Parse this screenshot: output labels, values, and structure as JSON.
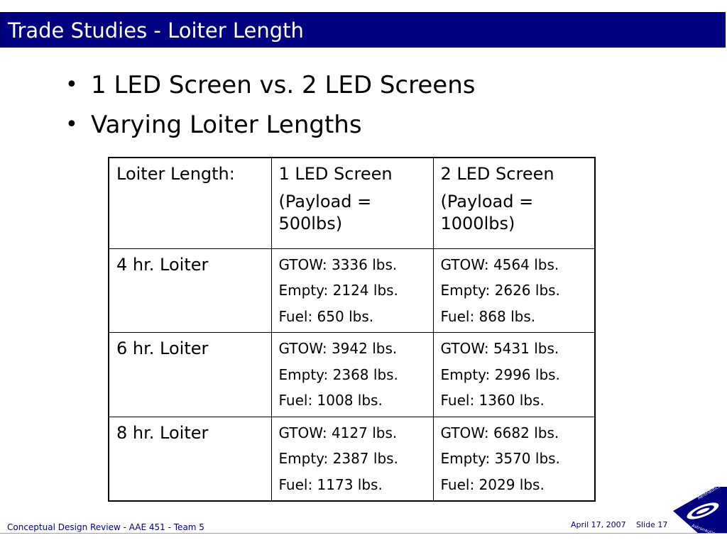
{
  "slide": {
    "title": "Trade Studies - Loiter Length",
    "bullets": [
      "1 LED Screen vs. 2 LED Screens",
      "Varying Loiter Lengths"
    ]
  },
  "table": {
    "header": {
      "col1": "Loiter Length:",
      "col2_line1": "1 LED Screen",
      "col2_line2": "(Payload = 500lbs)",
      "col3_line1": "2 LED Screen",
      "col3_line2": "(Payload = 1000lbs)"
    },
    "rows": [
      {
        "label": "4 hr. Loiter",
        "one_led": [
          "GTOW: 3336 lbs.",
          "Empty: 2124 lbs.",
          "Fuel: 650 lbs."
        ],
        "two_led": [
          "GTOW: 4564 lbs.",
          "Empty: 2626 lbs.",
          "Fuel: 868 lbs."
        ]
      },
      {
        "label": "6 hr. Loiter",
        "one_led": [
          "GTOW: 3942 lbs.",
          "Empty: 2368 lbs.",
          "Fuel: 1008 lbs."
        ],
        "two_led": [
          "GTOW: 5431 lbs.",
          "Empty: 2996 lbs.",
          "Fuel: 1360 lbs."
        ]
      },
      {
        "label": "8 hr. Loiter",
        "one_led": [
          "GTOW: 4127 lbs.",
          "Empty: 2387 lbs.",
          "Fuel: 1173 lbs."
        ],
        "two_led": [
          "GTOW: 6682 lbs.",
          "Empty: 3570 lbs.",
          "Fuel: 2029 lbs."
        ]
      }
    ]
  },
  "footer": {
    "left": "Conceptual Design Review - AAE 451 - Team 5",
    "date": "April 17, 2007",
    "slide": "Slide 17",
    "logo_text_top": "Aeronautics &",
    "logo_text_bottom": "Astronautics"
  },
  "colors": {
    "title_bar": "#000080",
    "footer_text": "#000080"
  }
}
